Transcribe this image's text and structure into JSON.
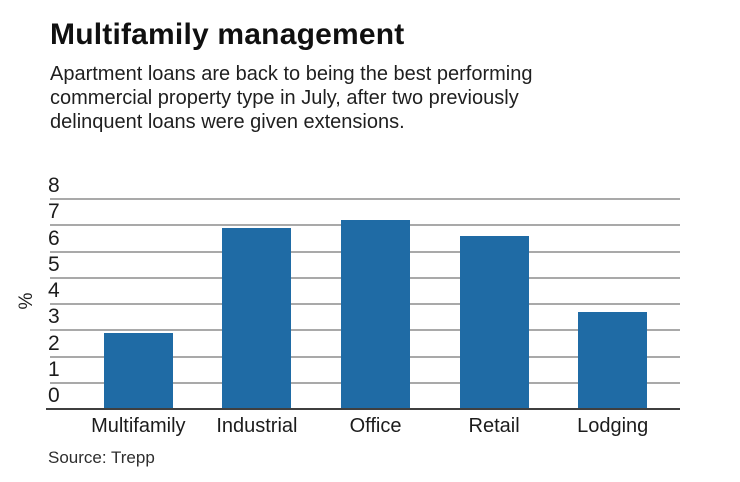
{
  "header": {
    "title": "Multifamily management",
    "subtitle_lines": [
      "Apartment loans are back to being the best performing",
      "commercial property type in July, after two previously",
      "delinquent loans were given extensions."
    ]
  },
  "chart_data": {
    "type": "bar",
    "title": "Multifamily management",
    "categories": [
      "Multifamily",
      "Industrial",
      "Office",
      "Retail",
      "Lodging"
    ],
    "values": [
      2.9,
      6.9,
      7.2,
      6.6,
      3.7
    ],
    "xlabel": "",
    "ylabel": "%",
    "ylim": [
      0,
      8
    ],
    "yticks": [
      0,
      1,
      2,
      3,
      4,
      5,
      6,
      7,
      8
    ],
    "grid": true,
    "legend": false,
    "bar_color": "#1f6ba5",
    "gridline_color": "#a9a9a9",
    "axis_color": "#3f3f3f"
  },
  "source": {
    "label": "Source: Trepp"
  }
}
